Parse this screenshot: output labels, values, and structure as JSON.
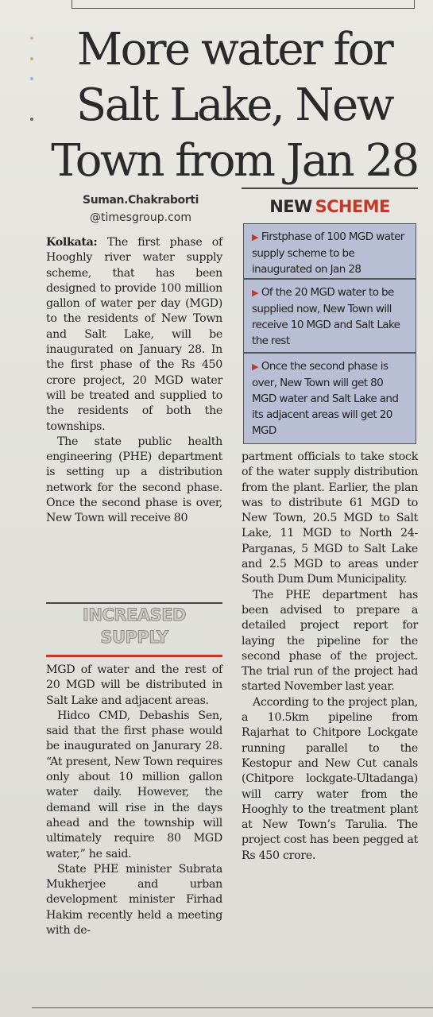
{
  "headline": [
    "More water for",
    "Salt Lake, New",
    "Town from Jan 28"
  ],
  "byline": {
    "name": "Suman.Chakraborti",
    "handle": "@timesgroup.com"
  },
  "new_scheme": {
    "title_a": "NEW",
    "title_b": "SCHEME",
    "items": [
      "Firstphase of 100 MGD water supply scheme to be inaugurated on Jan 28",
      "Of the 20 MGD water to be supplied now, New Town will receive 10 MGD and Salt Lake the rest",
      "Once the second phase is over, New Town will get 80 MGD water and Salt Lake and its adjacent areas will get 20 MGD"
    ]
  },
  "subhead": [
    "INCREASED",
    "SUPPLY"
  ],
  "article": {
    "dateline": "Kolkata:",
    "p1": "The first phase of Hooghly river water supply scheme, that has been designed to provide 100 million gallon of water per day (MGD) to the residents of New Town and Salt Lake, will be inaugurated on January 28. In the first phase of the Rs 450 crore project, 20 MGD water will be treated and supplied to the residents of both the townships.",
    "p2": "The state public health engineering (PHE) department is setting up a distribution network for the second phase. Once the second phase is over, New Town will receive 80",
    "p3": "MGD of water and the rest of 20 MGD will be distributed in Salt Lake and adjacent areas.",
    "p4": "Hidco CMD, Debashis Sen, said that the first phase would be inaugurated on Janurary 28. “At present, New Town requires only about 10 million gallon water daily. However, the demand will rise in the days ahead and the township will ultimately require 80 MGD water,” he said.",
    "p5": "State PHE minister Subrata Mukherjee and urban development minister Firhad Hakim recently held a meeting with de-",
    "p6": "partment officials to take stock of the water supply distribution from the plant. Earlier, the plan was to distribute 61 MGD to New Town, 20.5 MGD to Salt Lake, 11 MGD to North 24-Parganas, 5 MGD to Salt Lake and 2.5 MGD to areas under South Dum Dum Municipality.",
    "p7": "The PHE department has been advised to prepare a detailed project report for laying the pipeline for the second phase of the project. The trial run of the project had started November last year.",
    "p8": "According to the project plan, a 10.5km pipeline from Rajarhat to Chitpore Lockgate running parallel to the Kestopur and New Cut canals (Chitpore lockgate-Ultadanga) will carry water from the Hooghly to the treatment plant at New Town’s Tarulia. The project cost has been pegged at Rs 450 crore."
  },
  "colors": {
    "accent_red": "#c0392b",
    "box_blue": "#b8bed4"
  }
}
